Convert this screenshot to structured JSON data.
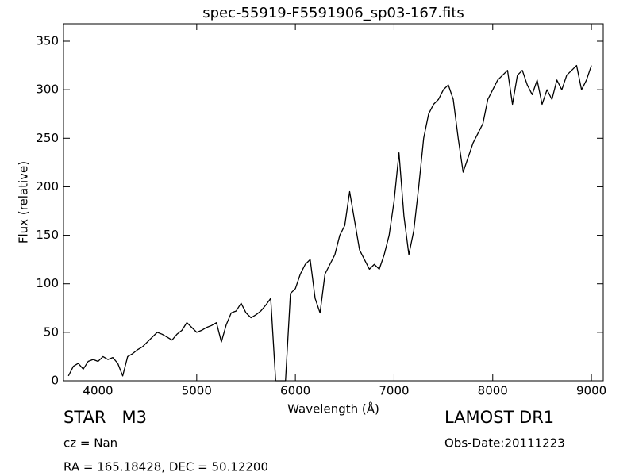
{
  "chart_data": {
    "type": "line",
    "title": "spec-55919-F5591906_sp03-167.fits",
    "xlabel": "Wavelength (Å)",
    "ylabel": "Flux (relative)",
    "annotations": {
      "object": "STAR   M3",
      "cz": "cz = Nan",
      "coords": "RA = 165.18428, DEC = 50.12200",
      "survey": "LAMOST DR1",
      "obsdate": "Obs-Date:20111223"
    },
    "x": [
      3700,
      3750,
      3800,
      3850,
      3900,
      3950,
      4000,
      4050,
      4100,
      4150,
      4200,
      4250,
      4300,
      4350,
      4400,
      4450,
      4500,
      4550,
      4600,
      4650,
      4700,
      4750,
      4800,
      4850,
      4900,
      4950,
      5000,
      5050,
      5100,
      5150,
      5200,
      5250,
      5300,
      5350,
      5400,
      5450,
      5500,
      5550,
      5600,
      5650,
      5700,
      5750,
      5800,
      5850,
      5900,
      5950,
      6000,
      6050,
      6100,
      6150,
      6200,
      6250,
      6300,
      6350,
      6400,
      6450,
      6500,
      6550,
      6600,
      6650,
      6700,
      6750,
      6800,
      6850,
      6900,
      6950,
      7000,
      7050,
      7100,
      7150,
      7200,
      7250,
      7300,
      7350,
      7400,
      7450,
      7500,
      7550,
      7600,
      7650,
      7700,
      7750,
      7800,
      7850,
      7900,
      7950,
      8000,
      8050,
      8100,
      8150,
      8200,
      8250,
      8300,
      8350,
      8400,
      8450,
      8500,
      8550,
      8600,
      8650,
      8700,
      8750,
      8800,
      8850,
      8900,
      8950,
      9000
    ],
    "series": [
      {
        "color": "#000000",
        "values": [
          5,
          15,
          18,
          12,
          20,
          22,
          20,
          25,
          22,
          24,
          18,
          5,
          25,
          28,
          32,
          35,
          40,
          45,
          50,
          48,
          45,
          42,
          48,
          52,
          60,
          55,
          50,
          52,
          55,
          57,
          60,
          40,
          58,
          70,
          72,
          80,
          70,
          65,
          68,
          72,
          78,
          85,
          0,
          0,
          0,
          90,
          95,
          110,
          120,
          125,
          85,
          70,
          110,
          120,
          130,
          150,
          160,
          195,
          165,
          135,
          125,
          115,
          120,
          115,
          130,
          150,
          185,
          235,
          170,
          130,
          155,
          200,
          250,
          275,
          285,
          290,
          300,
          305,
          290,
          250,
          215,
          230,
          245,
          255,
          265,
          290,
          300,
          310,
          315,
          320,
          285,
          315,
          320,
          305,
          295,
          310,
          285,
          300,
          290,
          310,
          300,
          315,
          320,
          325,
          300,
          310,
          325
        ]
      }
    ],
    "xlim": [
      3650,
      9120
    ],
    "ylim": [
      0,
      368
    ],
    "xticks": [
      4000,
      5000,
      6000,
      7000,
      8000,
      9000
    ],
    "yticks": [
      0,
      50,
      100,
      150,
      200,
      250,
      300,
      350
    ],
    "grid": false
  }
}
